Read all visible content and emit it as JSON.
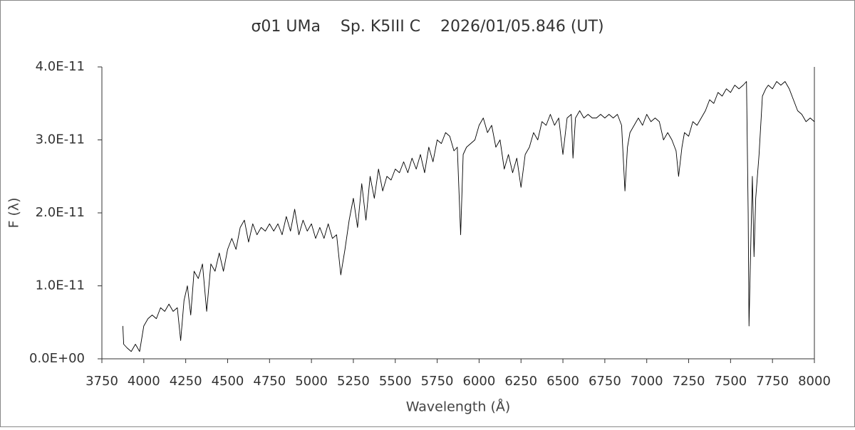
{
  "chart_data": {
    "type": "line",
    "title": "σ01 UMa    Sp. K5III C    2026/01/05.846 (UT)",
    "x_label": "Wavelength (Å)",
    "y_label": "F (λ)",
    "color": "#000000",
    "xlim": [
      3750,
      8000
    ],
    "xticks": [
      3750,
      4000,
      4250,
      4500,
      4750,
      5000,
      5250,
      5500,
      5750,
      6000,
      6250,
      6500,
      6750,
      7000,
      7250,
      7500,
      7750,
      8000
    ],
    "ylim": [
      0,
      4e-11
    ],
    "yticks": [
      {
        "value": 0,
        "label": "0.0E+00"
      },
      {
        "value": 1e-11,
        "label": "1.0E-11"
      },
      {
        "value": 2e-11,
        "label": "2.0E-11"
      },
      {
        "value": 3e-11,
        "label": "3.0E-11"
      },
      {
        "value": 4e-11,
        "label": "4.0E-11"
      }
    ],
    "x": [
      3875,
      3880,
      3900,
      3925,
      3950,
      3975,
      4000,
      4025,
      4050,
      4075,
      4100,
      4125,
      4150,
      4175,
      4200,
      4220,
      4240,
      4260,
      4280,
      4300,
      4325,
      4350,
      4375,
      4400,
      4425,
      4450,
      4475,
      4500,
      4525,
      4550,
      4575,
      4600,
      4625,
      4650,
      4675,
      4700,
      4725,
      4750,
      4775,
      4800,
      4825,
      4850,
      4875,
      4900,
      4925,
      4950,
      4975,
      5000,
      5025,
      5050,
      5075,
      5100,
      5125,
      5150,
      5175,
      5200,
      5225,
      5250,
      5275,
      5300,
      5325,
      5350,
      5375,
      5400,
      5425,
      5450,
      5475,
      5500,
      5525,
      5550,
      5575,
      5600,
      5625,
      5650,
      5675,
      5700,
      5725,
      5750,
      5775,
      5800,
      5825,
      5850,
      5870,
      5890,
      5905,
      5925,
      5950,
      5975,
      6000,
      6025,
      6050,
      6075,
      6100,
      6125,
      6150,
      6175,
      6200,
      6225,
      6250,
      6275,
      6300,
      6325,
      6350,
      6375,
      6400,
      6425,
      6450,
      6475,
      6500,
      6525,
      6550,
      6560,
      6575,
      6600,
      6625,
      6650,
      6675,
      6700,
      6725,
      6750,
      6775,
      6800,
      6825,
      6850,
      6870,
      6885,
      6900,
      6925,
      6950,
      6975,
      7000,
      7025,
      7050,
      7075,
      7100,
      7125,
      7150,
      7175,
      7190,
      7210,
      7225,
      7250,
      7275,
      7300,
      7325,
      7350,
      7375,
      7400,
      7425,
      7450,
      7475,
      7500,
      7525,
      7550,
      7575,
      7595,
      7605,
      7610,
      7620,
      7630,
      7640,
      7650,
      7670,
      7690,
      7710,
      7725,
      7750,
      7775,
      7800,
      7825,
      7850,
      7875,
      7900,
      7925,
      7950,
      7975,
      8000
    ],
    "values": [
      4.5e-12,
      2e-12,
      1.5e-12,
      1e-12,
      2e-12,
      1e-12,
      4.5e-12,
      5.5e-12,
      6e-12,
      5.5e-12,
      7e-12,
      6.5e-12,
      7.5e-12,
      6.5e-12,
      7e-12,
      2.5e-12,
      8e-12,
      1e-11,
      6e-12,
      1.2e-11,
      1.1e-11,
      1.3e-11,
      6.5e-12,
      1.3e-11,
      1.2e-11,
      1.45e-11,
      1.2e-11,
      1.5e-11,
      1.65e-11,
      1.5e-11,
      1.8e-11,
      1.9e-11,
      1.6e-11,
      1.85e-11,
      1.7e-11,
      1.8e-11,
      1.75e-11,
      1.85e-11,
      1.75e-11,
      1.85e-11,
      1.7e-11,
      1.95e-11,
      1.75e-11,
      2.05e-11,
      1.7e-11,
      1.9e-11,
      1.75e-11,
      1.85e-11,
      1.65e-11,
      1.8e-11,
      1.65e-11,
      1.85e-11,
      1.65e-11,
      1.7e-11,
      1.15e-11,
      1.5e-11,
      1.9e-11,
      2.2e-11,
      1.8e-11,
      2.4e-11,
      1.9e-11,
      2.5e-11,
      2.2e-11,
      2.6e-11,
      2.3e-11,
      2.5e-11,
      2.45e-11,
      2.6e-11,
      2.55e-11,
      2.7e-11,
      2.55e-11,
      2.75e-11,
      2.6e-11,
      2.8e-11,
      2.55e-11,
      2.9e-11,
      2.7e-11,
      3e-11,
      2.95e-11,
      3.1e-11,
      3.05e-11,
      2.85e-11,
      2.9e-11,
      1.7e-11,
      2.8e-11,
      2.9e-11,
      2.95e-11,
      3e-11,
      3.2e-11,
      3.3e-11,
      3.1e-11,
      3.2e-11,
      2.9e-11,
      3e-11,
      2.6e-11,
      2.8e-11,
      2.55e-11,
      2.75e-11,
      2.35e-11,
      2.8e-11,
      2.9e-11,
      3.1e-11,
      3e-11,
      3.25e-11,
      3.2e-11,
      3.35e-11,
      3.2e-11,
      3.3e-11,
      2.8e-11,
      3.3e-11,
      3.35e-11,
      2.75e-11,
      3.3e-11,
      3.4e-11,
      3.3e-11,
      3.35e-11,
      3.3e-11,
      3.3e-11,
      3.35e-11,
      3.3e-11,
      3.35e-11,
      3.3e-11,
      3.35e-11,
      3.2e-11,
      2.3e-11,
      2.9e-11,
      3.1e-11,
      3.2e-11,
      3.3e-11,
      3.2e-11,
      3.35e-11,
      3.25e-11,
      3.3e-11,
      3.25e-11,
      3e-11,
      3.1e-11,
      3e-11,
      2.85e-11,
      2.5e-11,
      2.9e-11,
      3.1e-11,
      3.05e-11,
      3.25e-11,
      3.2e-11,
      3.3e-11,
      3.4e-11,
      3.55e-11,
      3.5e-11,
      3.65e-11,
      3.6e-11,
      3.7e-11,
      3.65e-11,
      3.75e-11,
      3.7e-11,
      3.75e-11,
      3.8e-11,
      2e-11,
      4.5e-12,
      1.5e-11,
      2.5e-11,
      1.4e-11,
      2.2e-11,
      2.8e-11,
      3.6e-11,
      3.7e-11,
      3.75e-11,
      3.7e-11,
      3.8e-11,
      3.75e-11,
      3.8e-11,
      3.7e-11,
      3.55e-11,
      3.4e-11,
      3.35e-11,
      3.25e-11,
      3.3e-11,
      3.25e-11
    ]
  }
}
